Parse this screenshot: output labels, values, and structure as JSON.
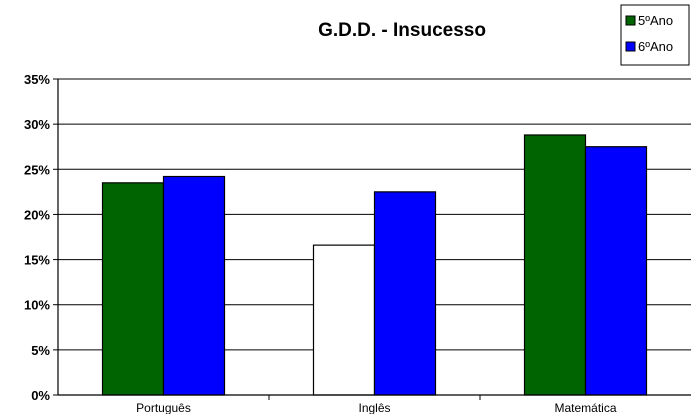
{
  "chart_data": {
    "type": "bar",
    "title": "G.D.D. - Insucesso",
    "xlabel": "",
    "ylabel": "",
    "categories": [
      "Português",
      "Inglês",
      "Matemática"
    ],
    "series": [
      {
        "name": "5ºAno",
        "color": "#006400",
        "values": [
          23.5,
          16.6,
          28.8
        ],
        "point_colors": [
          "#006400",
          "#ffffff",
          "#006400"
        ]
      },
      {
        "name": "6ºAno",
        "color": "#0000ff",
        "values": [
          24.2,
          22.5,
          27.5
        ]
      }
    ],
    "ylim": [
      0,
      35
    ],
    "yticks": [
      0,
      5,
      10,
      15,
      20,
      25,
      30,
      35
    ],
    "ytick_labels": [
      "0%",
      "5%",
      "10%",
      "15%",
      "20%",
      "25%",
      "30%",
      "35%"
    ],
    "grid": true,
    "legend_position": "top-right"
  }
}
